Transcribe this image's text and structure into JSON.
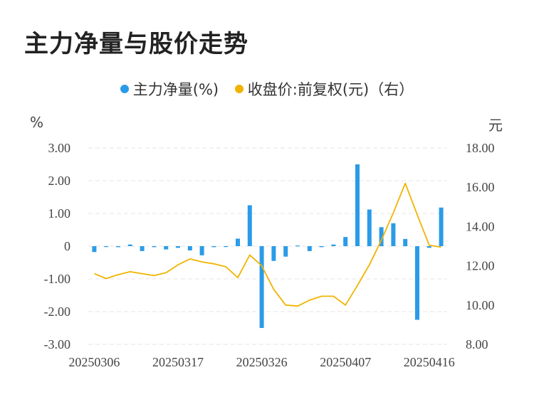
{
  "title": "主力净量与股价走势",
  "legend": [
    {
      "label": "主力净量(%)",
      "color": "#2b9be8"
    },
    {
      "label": "收盘价:前复权(元)（右）",
      "color": "#f0b400"
    }
  ],
  "units": {
    "left": "%",
    "right": "元"
  },
  "chart_data": {
    "type": "bar+line",
    "title": "主力净量与股价走势",
    "x_tick_labels": [
      "20250306",
      "20250317",
      "20250326",
      "20250407",
      "20250416"
    ],
    "x_tick_index": [
      0,
      7,
      14,
      21,
      28
    ],
    "left_axis": {
      "unit": "%",
      "ylim": [
        -3,
        3
      ],
      "ticks": [
        "3.00",
        "2.00",
        "1.00",
        "0",
        "-1.00",
        "-2.00",
        "-3.00"
      ]
    },
    "right_axis": {
      "unit": "元",
      "ylim": [
        8,
        18
      ],
      "ticks": [
        "18.00",
        "16.00",
        "14.00",
        "12.00",
        "10.00",
        "8.00"
      ]
    },
    "grid": true,
    "legend_position": "top-center",
    "series": [
      {
        "name": "主力净量(%)",
        "type": "bar",
        "axis": "left",
        "color": "#2b9be8",
        "values": [
          -0.18,
          -0.02,
          -0.03,
          0.05,
          -0.15,
          -0.03,
          -0.1,
          -0.05,
          -0.13,
          -0.28,
          -0.03,
          -0.02,
          0.23,
          1.25,
          -2.5,
          -0.45,
          -0.32,
          0.02,
          -0.15,
          -0.03,
          0.05,
          0.28,
          2.5,
          1.12,
          0.58,
          0.7,
          0.22,
          -2.25,
          -0.05,
          1.18
        ]
      },
      {
        "name": "收盘价:前复权(元)（右）",
        "type": "line",
        "axis": "right",
        "color": "#f0b400",
        "values": [
          11.6,
          11.35,
          11.55,
          11.7,
          11.6,
          11.5,
          11.65,
          12.05,
          12.35,
          12.2,
          12.1,
          11.95,
          11.4,
          12.55,
          12.0,
          10.8,
          10.0,
          9.95,
          10.25,
          10.45,
          10.45,
          10.0,
          11.0,
          12.05,
          13.3,
          14.7,
          16.2,
          14.6,
          13.05,
          12.95
        ]
      }
    ]
  }
}
